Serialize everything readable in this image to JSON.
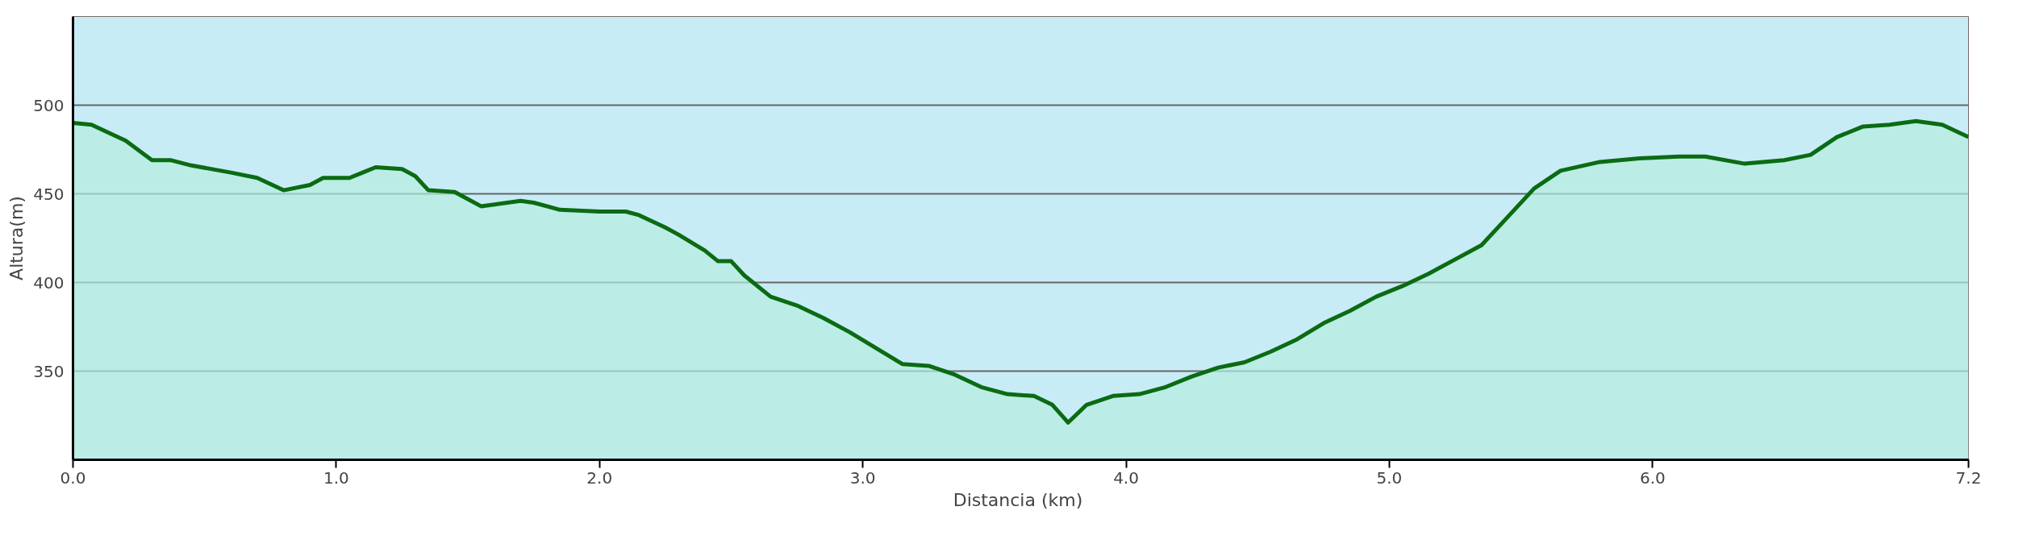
{
  "chart_data": {
    "type": "area",
    "xlabel": "Distancia  (km)",
    "ylabel": "Altura(m)",
    "xlim": [
      0,
      7.2
    ],
    "xticks": [
      {
        "value": 0,
        "label": "0.0"
      },
      {
        "value": 1,
        "label": "1.0"
      },
      {
        "value": 2,
        "label": "2.0"
      },
      {
        "value": 3,
        "label": "3.0"
      },
      {
        "value": 4,
        "label": "4.0"
      },
      {
        "value": 5,
        "label": "5.0"
      },
      {
        "value": 6,
        "label": "6.0"
      },
      {
        "value": 7.2,
        "label": "7.2"
      }
    ],
    "ylim": [
      300,
      550
    ],
    "yticks": [
      350,
      400,
      450,
      500
    ],
    "grid": "y",
    "marker": "none",
    "line_style": "solid",
    "x": [
      0,
      0.07,
      0.2,
      0.3,
      0.37,
      0.45,
      0.6,
      0.7,
      0.8,
      0.9,
      0.95,
      1.05,
      1.1,
      1.15,
      1.25,
      1.3,
      1.35,
      1.45,
      1.55,
      1.6,
      1.7,
      1.75,
      1.85,
      2.0,
      2.1,
      2.15,
      2.25,
      2.3,
      2.4,
      2.45,
      2.5,
      2.55,
      2.65,
      2.75,
      2.85,
      2.95,
      3.05,
      3.15,
      3.25,
      3.35,
      3.45,
      3.55,
      3.65,
      3.72,
      3.78,
      3.85,
      3.95,
      4.05,
      4.15,
      4.25,
      4.35,
      4.45,
      4.55,
      4.65,
      4.75,
      4.85,
      4.95,
      5.05,
      5.15,
      5.25,
      5.35,
      5.45,
      5.55,
      5.65,
      5.8,
      5.95,
      6.1,
      6.2,
      6.35,
      6.5,
      6.6,
      6.7,
      6.8,
      6.9,
      7.0,
      7.1,
      7.2
    ],
    "series": [
      {
        "color": "#0b6b12",
        "values": [
          490,
          489,
          480,
          469,
          469,
          466,
          462,
          459,
          452,
          455,
          459,
          459,
          462,
          465,
          464,
          460,
          452,
          451,
          443,
          444,
          446,
          445,
          441,
          440,
          440,
          438,
          431,
          427,
          418,
          412,
          412,
          404,
          392,
          387,
          380,
          372,
          363,
          354,
          353,
          348,
          341,
          337,
          336,
          331,
          321,
          331,
          336,
          337,
          341,
          347,
          352,
          355,
          361,
          368,
          377,
          384,
          392,
          398,
          405,
          413,
          421,
          437,
          453,
          463,
          468,
          470,
          471,
          471,
          467,
          469,
          472,
          482,
          488,
          489,
          491,
          489,
          482
        ]
      }
    ]
  }
}
